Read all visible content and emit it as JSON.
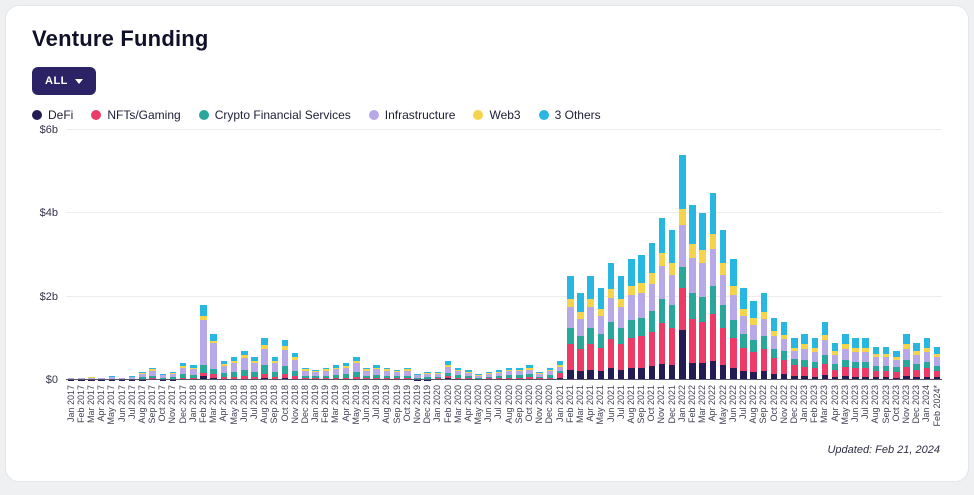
{
  "page": {
    "title": "Venture Funding",
    "updated": "Updated: Feb 21, 2024"
  },
  "filter_button": {
    "label": "ALL"
  },
  "chart_data": {
    "type": "bar",
    "stacked": true,
    "unit": "$M",
    "title": "Venture Funding",
    "xlabel": "",
    "ylabel": "",
    "ylim": [
      0,
      6000
    ],
    "grid": true,
    "legend_position": "top",
    "yticks": [
      {
        "value": 0,
        "label": "$0"
      },
      {
        "value": 2000,
        "label": "$2b"
      },
      {
        "value": 4000,
        "label": "$4b"
      },
      {
        "value": 6000,
        "label": "$6b"
      }
    ],
    "categories": [
      "Jan 2017",
      "Feb 2017",
      "Mar 2017",
      "Apr 2017",
      "May 2017",
      "Jun 2017",
      "Jul 2017",
      "Aug 2017",
      "Sep 2017",
      "Oct 2017",
      "Nov 2017",
      "Dec 2017",
      "Jan 2018",
      "Feb 2018",
      "Mar 2018",
      "Apr 2018",
      "May 2018",
      "Jun 2018",
      "Jul 2018",
      "Aug 2018",
      "Sep 2018",
      "Oct 2018",
      "Nov 2018",
      "Dec 2018",
      "Jan 2019",
      "Feb 2019",
      "Mar 2019",
      "Apr 2019",
      "May 2019",
      "Jun 2019",
      "Jul 2019",
      "Aug 2019",
      "Sep 2019",
      "Oct 2019",
      "Nov 2019",
      "Dec 2019",
      "Jan 2020",
      "Feb 2020",
      "Mar 2020",
      "Apr 2020",
      "May 2020",
      "Jun 2020",
      "Jul 2020",
      "Aug 2020",
      "Sep 2020",
      "Oct 2020",
      "Nov 2020",
      "Dec 2020",
      "Jan 2021",
      "Feb 2021",
      "Mar 2021",
      "Apr 2021",
      "May 2021",
      "Jun 2021",
      "Jul 2021",
      "Aug 2021",
      "Sep 2021",
      "Oct 2021",
      "Nov 2021",
      "Dec 2021",
      "Jan 2022",
      "Feb 2022",
      "Mar 2022",
      "Apr 2022",
      "May 2022",
      "Jun 2022",
      "Jul 2022",
      "Aug 2022",
      "Sep 2022",
      "Oct 2022",
      "Nov 2022",
      "Dec 2022",
      "Jan 2023",
      "Feb 2023",
      "Mar 2023",
      "Apr 2023",
      "May 2023",
      "Jun 2023",
      "Jul 2023",
      "Aug 2023",
      "Sep 2023",
      "Oct 2023",
      "Nov 2023",
      "Dec 2023",
      "Jan 2024",
      "Feb 2024*"
    ],
    "series": [
      {
        "name": "DeFi",
        "color": "#231c54",
        "values": [
          3,
          3,
          4,
          3,
          5,
          3,
          5,
          10,
          15,
          8,
          10,
          20,
          18,
          90,
          55,
          23,
          28,
          35,
          28,
          50,
          28,
          48,
          33,
          15,
          13,
          15,
          18,
          20,
          28,
          15,
          18,
          15,
          13,
          15,
          8,
          10,
          20,
          45,
          30,
          25,
          15,
          20,
          25,
          30,
          30,
          35,
          20,
          30,
          45,
          250,
          210,
          250,
          220,
          280,
          250,
          290,
          300,
          330,
          390,
          360,
          1200,
          420,
          400,
          450,
          360,
          290,
          220,
          190,
          210,
          150,
          140,
          100,
          88,
          80,
          112,
          72,
          88,
          80,
          80,
          64,
          64,
          56,
          88,
          72,
          80,
          64
        ]
      },
      {
        "name": "NFTs/Gaming",
        "color": "#ed3b68",
        "values": [
          5,
          5,
          8,
          5,
          10,
          5,
          10,
          20,
          30,
          15,
          20,
          40,
          35,
          90,
          88,
          45,
          55,
          70,
          55,
          100,
          55,
          95,
          65,
          30,
          25,
          30,
          35,
          40,
          55,
          30,
          35,
          30,
          25,
          30,
          15,
          20,
          20,
          45,
          30,
          25,
          15,
          20,
          25,
          30,
          30,
          35,
          20,
          30,
          112,
          625,
          525,
          625,
          550,
          700,
          625,
          725,
          750,
          825,
          975,
          900,
          1020,
          1050,
          1000,
          1125,
          900,
          725,
          550,
          475,
          525,
          375,
          350,
          250,
          220,
          200,
          280,
          180,
          220,
          200,
          200,
          160,
          160,
          140,
          220,
          180,
          200,
          160
        ]
      },
      {
        "name": "Crypto Financial Services",
        "color": "#2aa79b",
        "values": [
          10,
          10,
          16,
          10,
          20,
          10,
          20,
          40,
          60,
          30,
          40,
          80,
          70,
          180,
          132,
          90,
          110,
          140,
          110,
          200,
          110,
          190,
          130,
          60,
          50,
          60,
          70,
          80,
          110,
          60,
          70,
          60,
          50,
          60,
          30,
          40,
          40,
          90,
          60,
          50,
          30,
          40,
          50,
          60,
          60,
          70,
          40,
          60,
          68,
          375,
          315,
          375,
          330,
          420,
          375,
          435,
          450,
          495,
          585,
          540,
          490,
          630,
          600,
          675,
          540,
          435,
          330,
          285,
          315,
          225,
          210,
          150,
          165,
          150,
          210,
          135,
          165,
          150,
          150,
          120,
          120,
          105,
          165,
          135,
          150,
          120
        ]
      },
      {
        "name": "Infrastructure",
        "color": "#b7a9e8",
        "values": [
          20,
          20,
          32,
          20,
          40,
          20,
          40,
          80,
          120,
          60,
          80,
          160,
          140,
          1080,
          605,
          180,
          220,
          280,
          220,
          400,
          220,
          380,
          260,
          120,
          100,
          120,
          140,
          160,
          220,
          120,
          140,
          120,
          100,
          120,
          60,
          80,
          60,
          135,
          90,
          75,
          45,
          60,
          75,
          90,
          90,
          105,
          60,
          90,
          90,
          500,
          420,
          500,
          440,
          560,
          500,
          580,
          600,
          660,
          780,
          720,
          1020,
          840,
          800,
          900,
          720,
          580,
          440,
          380,
          420,
          300,
          280,
          200,
          275,
          250,
          350,
          225,
          275,
          250,
          250,
          200,
          200,
          175,
          275,
          225,
          250,
          200
        ]
      },
      {
        "name": "Web3",
        "color": "#f6d34c",
        "values": [
          5,
          5,
          8,
          5,
          10,
          5,
          10,
          20,
          30,
          15,
          20,
          40,
          35,
          90,
          55,
          45,
          55,
          70,
          55,
          100,
          55,
          95,
          65,
          30,
          25,
          30,
          35,
          40,
          55,
          30,
          35,
          30,
          25,
          30,
          15,
          20,
          20,
          45,
          30,
          25,
          15,
          20,
          25,
          30,
          30,
          35,
          20,
          30,
          36,
          200,
          168,
          200,
          176,
          224,
          200,
          232,
          240,
          264,
          312,
          288,
          380,
          336,
          320,
          360,
          288,
          232,
          176,
          152,
          168,
          120,
          112,
          80,
          110,
          100,
          140,
          90,
          110,
          100,
          100,
          80,
          80,
          70,
          110,
          90,
          100,
          80
        ]
      },
      {
        "name": "3 Others",
        "color": "#28b7e0",
        "values": [
          7,
          7,
          12,
          7,
          15,
          7,
          15,
          30,
          45,
          22,
          30,
          60,
          52,
          270,
          165,
          67,
          82,
          105,
          82,
          150,
          82,
          142,
          97,
          45,
          37,
          45,
          52,
          60,
          82,
          45,
          52,
          45,
          37,
          45,
          22,
          30,
          40,
          90,
          60,
          50,
          30,
          40,
          50,
          60,
          60,
          70,
          40,
          60,
          99,
          550,
          462,
          550,
          484,
          616,
          550,
          638,
          660,
          726,
          858,
          792,
          1290,
          924,
          880,
          990,
          792,
          638,
          484,
          418,
          462,
          330,
          308,
          220,
          242,
          220,
          308,
          198,
          242,
          220,
          220,
          176,
          176,
          154,
          242,
          198,
          220,
          176
        ]
      }
    ]
  }
}
